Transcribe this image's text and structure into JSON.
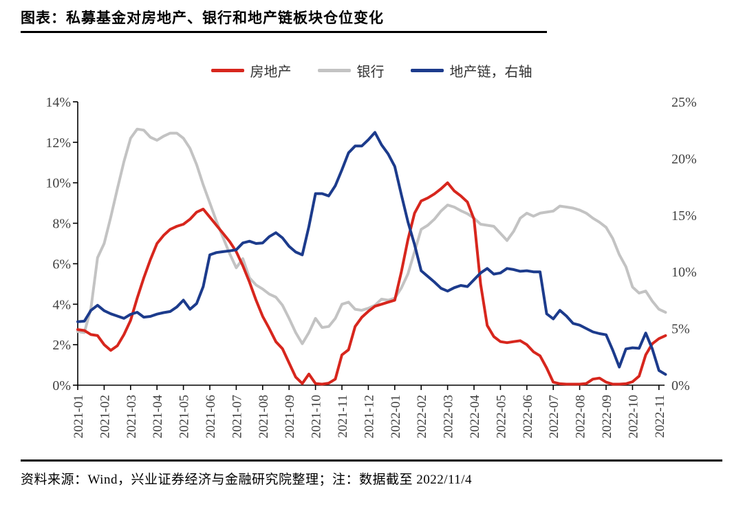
{
  "title": "图表：私募基金对房地产、银行和地产链板块仓位变化",
  "footer": "资料来源：Wind，兴业证券经济与金融研究院整理；注：数据截至 2022/11/4",
  "colors": {
    "real_estate": "#d7261d",
    "bank": "#c3c3c3",
    "property_chain": "#1c3b8c",
    "axis_line": "#000000",
    "tick_label": "#3f3f3f"
  },
  "legend": [
    {
      "label": "房地产",
      "color": "#d7261d"
    },
    {
      "label": "银行",
      "color": "#c3c3c3"
    },
    {
      "label": "地产链，右轴",
      "color": "#1c3b8c"
    }
  ],
  "chart_data": {
    "type": "line",
    "title": "私募基金对房地产、银行和地产链板块仓位变化",
    "x_labels": [
      "2021-01",
      "2021-02",
      "2021-03",
      "2021-04",
      "2021-05",
      "2021-06",
      "2021-07",
      "2021-08",
      "2021-09",
      "2021-10",
      "2021-11",
      "2021-12",
      "2022-01",
      "2022-02",
      "2022-03",
      "2022-04",
      "2022-05",
      "2022-06",
      "2022-07",
      "2022-08",
      "2022-09",
      "2022-10",
      "2022-11"
    ],
    "points_per_month": 4,
    "grid": false,
    "legend_position": "top-center",
    "left_axis": {
      "ticks": [
        "14%",
        "12%",
        "10%",
        "8%",
        "6%",
        "4%",
        "2%",
        "0%"
      ],
      "min": 0,
      "max": 14
    },
    "right_axis": {
      "ticks": [
        "25%",
        "20%",
        "15%",
        "10%",
        "5%",
        "0%"
      ],
      "min": 0,
      "max": 25
    },
    "series": [
      {
        "name": "房地产",
        "axis": "left",
        "color": "#d7261d",
        "values": [
          2.75,
          2.7,
          2.5,
          2.45,
          2.0,
          1.72,
          1.95,
          2.5,
          3.2,
          4.3,
          5.3,
          6.2,
          7.0,
          7.4,
          7.7,
          7.85,
          7.95,
          8.2,
          8.55,
          8.7,
          8.3,
          7.9,
          7.5,
          7.1,
          6.6,
          5.9,
          5.1,
          4.2,
          3.4,
          2.8,
          2.15,
          1.8,
          1.1,
          0.4,
          0.08,
          0.55,
          0.08,
          0.05,
          0.1,
          0.3,
          1.5,
          1.75,
          2.9,
          3.35,
          3.65,
          3.9,
          4.0,
          4.1,
          4.2,
          5.6,
          7.2,
          8.5,
          9.1,
          9.25,
          9.45,
          9.7,
          10.0,
          9.6,
          9.35,
          9.05,
          8.2,
          5.0,
          2.95,
          2.4,
          2.15,
          2.1,
          2.15,
          2.2,
          2.0,
          1.65,
          1.45,
          0.85,
          0.15,
          0.07,
          0.05,
          0.05,
          0.05,
          0.08,
          0.3,
          0.35,
          0.15,
          0.05,
          0.05,
          0.07,
          0.17,
          0.45,
          1.5,
          2.05,
          2.3,
          2.45
        ]
      },
      {
        "name": "银行",
        "axis": "left",
        "color": "#c3c3c3",
        "values": [
          2.65,
          2.6,
          3.8,
          6.3,
          7.0,
          8.3,
          9.7,
          11.05,
          12.2,
          12.65,
          12.6,
          12.25,
          12.1,
          12.3,
          12.45,
          12.45,
          12.2,
          11.7,
          10.9,
          9.9,
          9.0,
          8.1,
          7.3,
          6.5,
          5.8,
          6.25,
          5.3,
          4.95,
          4.75,
          4.5,
          4.35,
          3.95,
          3.3,
          2.6,
          2.05,
          2.6,
          3.3,
          2.85,
          2.9,
          3.3,
          4.0,
          4.1,
          3.75,
          3.7,
          3.8,
          3.95,
          4.25,
          4.2,
          4.3,
          4.8,
          5.5,
          6.6,
          7.7,
          7.9,
          8.2,
          8.6,
          8.9,
          8.8,
          8.62,
          8.47,
          8.25,
          7.95,
          7.9,
          7.85,
          7.5,
          7.15,
          7.6,
          8.25,
          8.5,
          8.35,
          8.5,
          8.55,
          8.6,
          8.85,
          8.8,
          8.75,
          8.65,
          8.5,
          8.25,
          8.05,
          7.8,
          7.25,
          6.45,
          5.85,
          4.85,
          4.55,
          4.65,
          4.15,
          3.75,
          3.6
        ]
      },
      {
        "name": "地产链，右轴",
        "axis": "right",
        "color": "#1c3b8c",
        "values": [
          5.6,
          5.65,
          6.6,
          7.05,
          6.57,
          6.3,
          6.1,
          5.9,
          6.25,
          6.43,
          6.0,
          6.07,
          6.27,
          6.4,
          6.5,
          6.9,
          7.5,
          6.7,
          7.2,
          8.7,
          11.5,
          11.7,
          11.78,
          11.85,
          11.95,
          12.55,
          12.7,
          12.5,
          12.55,
          13.1,
          13.45,
          13.0,
          12.25,
          11.75,
          11.5,
          14.0,
          16.9,
          16.9,
          16.7,
          17.6,
          19.0,
          20.5,
          21.1,
          21.1,
          21.65,
          22.3,
          21.2,
          20.4,
          19.3,
          16.8,
          14.4,
          12.4,
          10.1,
          9.6,
          9.1,
          8.55,
          8.3,
          8.6,
          8.8,
          8.7,
          9.3,
          9.9,
          10.3,
          9.8,
          9.9,
          10.3,
          10.2,
          10.05,
          10.1,
          10.0,
          10.0,
          6.3,
          5.85,
          6.6,
          6.1,
          5.45,
          5.3,
          5.0,
          4.7,
          4.55,
          4.45,
          3.1,
          1.6,
          3.2,
          3.3,
          3.25,
          4.6,
          3.2,
          1.3,
          0.95
        ]
      }
    ]
  }
}
